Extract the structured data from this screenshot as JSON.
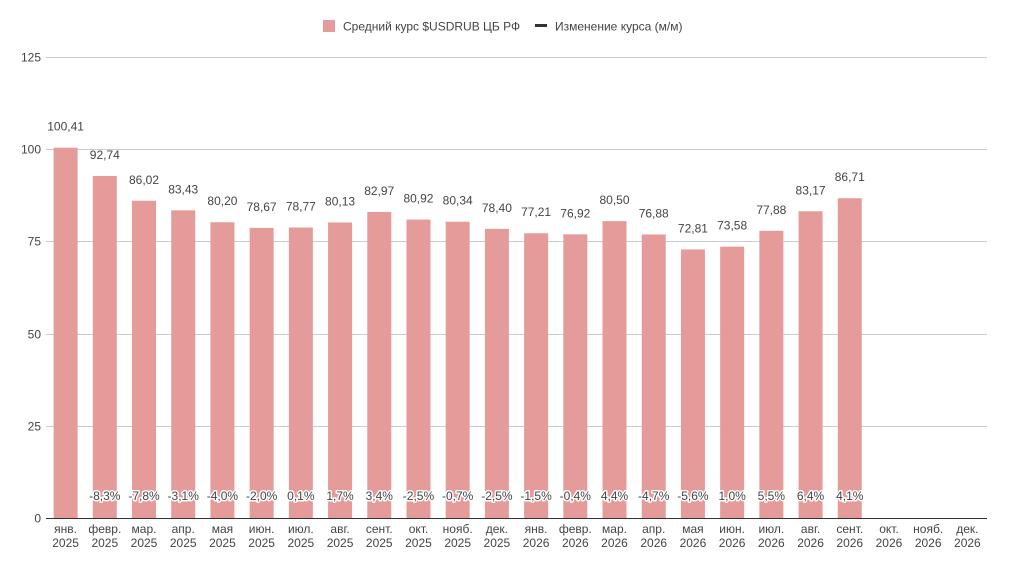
{
  "chart_data": {
    "type": "bar",
    "legend": {
      "position": "top",
      "items": [
        {
          "label": "Средний курс $USDRUB ЦБ РФ",
          "color": "#e69b9b",
          "shape": "square"
        },
        {
          "label": "Изменение курса (м/м)",
          "color": "#333333",
          "shape": "line"
        }
      ]
    },
    "categories": [
      [
        "янв.",
        "2025"
      ],
      [
        "февр.",
        "2025"
      ],
      [
        "мар.",
        "2025"
      ],
      [
        "апр.",
        "2025"
      ],
      [
        "мая",
        "2025"
      ],
      [
        "июн.",
        "2025"
      ],
      [
        "июл.",
        "2025"
      ],
      [
        "авг.",
        "2025"
      ],
      [
        "сент.",
        "2025"
      ],
      [
        "окт.",
        "2025"
      ],
      [
        "нояб.",
        "2025"
      ],
      [
        "дек.",
        "2025"
      ],
      [
        "янв.",
        "2026"
      ],
      [
        "февр.",
        "2026"
      ],
      [
        "мар.",
        "2026"
      ],
      [
        "апр.",
        "2026"
      ],
      [
        "мая",
        "2026"
      ],
      [
        "июн.",
        "2026"
      ],
      [
        "июл.",
        "2026"
      ],
      [
        "авг.",
        "2026"
      ],
      [
        "сент.",
        "2026"
      ],
      [
        "окт.",
        "2026"
      ],
      [
        "нояб.",
        "2026"
      ],
      [
        "дек.",
        "2026"
      ]
    ],
    "series": [
      {
        "name": "Средний курс $USDRUB ЦБ РФ",
        "color": "#e69b9b",
        "values": [
          100.41,
          92.74,
          86.02,
          83.43,
          80.2,
          78.67,
          78.77,
          80.13,
          82.97,
          80.92,
          80.34,
          78.4,
          77.21,
          76.92,
          80.5,
          76.88,
          72.81,
          73.58,
          77.88,
          83.17,
          86.71,
          null,
          null,
          null
        ],
        "labels": [
          "100,41",
          "92,74",
          "86,02",
          "83,43",
          "80,20",
          "78,67",
          "78,77",
          "80,13",
          "82,97",
          "80,92",
          "80,34",
          "78,40",
          "77,21",
          "76,92",
          "80,50",
          "76,88",
          "72,81",
          "73,58",
          "77,88",
          "83,17",
          "86,71",
          "",
          "",
          ""
        ]
      },
      {
        "name": "Изменение курса (м/м)",
        "color": "#333333",
        "values": [
          null,
          -8.3,
          -7.8,
          -3.1,
          -4.0,
          -2.0,
          0.1,
          1.7,
          3.4,
          -2.5,
          -0.7,
          -2.5,
          -1.5,
          -0.4,
          4.4,
          -4.7,
          -5.6,
          1.0,
          5.5,
          6.4,
          4.1,
          null,
          null,
          null
        ],
        "labels": [
          "",
          "-8,3%",
          "-7,8%",
          "-3,1%",
          "-4,0%",
          "-2,0%",
          "0,1%",
          "1,7%",
          "3,4%",
          "-2,5%",
          "-0,7%",
          "-2,5%",
          "-1,5%",
          "-0,4%",
          "4,4%",
          "-4,7%",
          "-5,6%",
          "1,0%",
          "5,5%",
          "6,4%",
          "4,1%",
          "",
          "",
          ""
        ]
      }
    ],
    "yaxis": {
      "ticks": [
        0,
        25,
        50,
        75,
        100,
        125
      ],
      "tick_labels": [
        "0",
        "25",
        "50",
        "75",
        "100",
        "125"
      ],
      "ylim": [
        0,
        125
      ]
    },
    "grid": true,
    "title": "",
    "xlabel": "",
    "ylabel": ""
  }
}
